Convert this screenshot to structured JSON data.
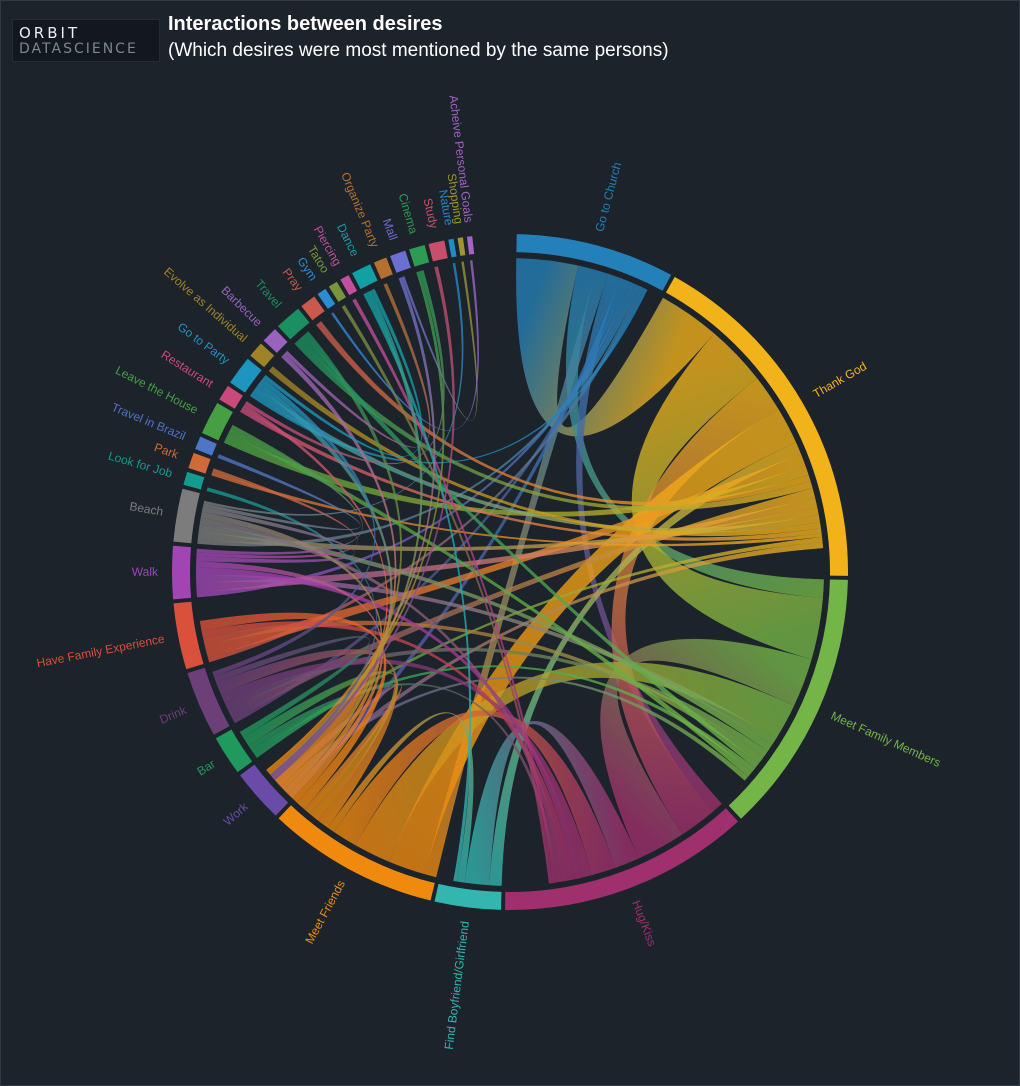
{
  "logo": {
    "line1": "ORBIT",
    "line2": "DATASCIENCE"
  },
  "header": {
    "title": "Interactions between desires",
    "subtitle": "(Which desires were most mentioned by the same persons)"
  },
  "chart_data": {
    "type": "chord",
    "title": "Interactions between desires",
    "subtitle": "(Which desires were most mentioned by the same persons)",
    "groups": [
      {
        "name": "Go to Church",
        "value": 12,
        "color": "#2480b8"
      },
      {
        "name": "Thank God",
        "value": 27,
        "color": "#f2b21a"
      },
      {
        "name": "Meet Family Members",
        "value": 20,
        "color": "#74b547"
      },
      {
        "name": "Hug/Kiss",
        "value": 19,
        "color": "#a0306d"
      },
      {
        "name": "Find Boyfriend/Girlfriend",
        "value": 5,
        "color": "#33b5b0"
      },
      {
        "name": "Meet Friends",
        "value": 13,
        "color": "#f08a0f"
      },
      {
        "name": "Work",
        "value": 4,
        "color": "#6a4ca8"
      },
      {
        "name": "Bar",
        "value": 3,
        "color": "#1f9a5c"
      },
      {
        "name": "Drink",
        "value": 5,
        "color": "#6d3f79"
      },
      {
        "name": "Have Family Experience",
        "value": 5,
        "color": "#d9513a"
      },
      {
        "name": "Walk",
        "value": 4,
        "color": "#a145b5"
      },
      {
        "name": "Beach",
        "value": 4,
        "color": "#7c7c7c"
      },
      {
        "name": "Look for Job",
        "value": 1,
        "color": "#149b8f"
      },
      {
        "name": "Park",
        "value": 1.2,
        "color": "#d06a38"
      },
      {
        "name": "Travel in Brazil",
        "value": 1,
        "color": "#4f75c7"
      },
      {
        "name": "Leave the House",
        "value": 2.5,
        "color": "#46a043"
      },
      {
        "name": "Restaurant",
        "value": 1.2,
        "color": "#c9497a"
      },
      {
        "name": "Go to Party",
        "value": 2.2,
        "color": "#1c96c0"
      },
      {
        "name": "Evolve as Individual",
        "value": 1.2,
        "color": "#a08326"
      },
      {
        "name": "Barbecue",
        "value": 1.2,
        "color": "#9a62bf"
      },
      {
        "name": "Travel",
        "value": 2,
        "color": "#1a8f5f"
      },
      {
        "name": "Pray",
        "value": 1.2,
        "color": "#c8594b"
      },
      {
        "name": "Gym",
        "value": 0.7,
        "color": "#2a8dd4"
      },
      {
        "name": "Tatoo",
        "value": 0.7,
        "color": "#79943a"
      },
      {
        "name": "Piercing",
        "value": 0.7,
        "color": "#c2509c"
      },
      {
        "name": "Dance",
        "value": 1.5,
        "color": "#13a0a4"
      },
      {
        "name": "Organize Party",
        "value": 1,
        "color": "#b5702f"
      },
      {
        "name": "Mall",
        "value": 1.2,
        "color": "#6b6fcf"
      },
      {
        "name": "Cinema",
        "value": 1.2,
        "color": "#2e9b54"
      },
      {
        "name": "Study",
        "value": 1.2,
        "color": "#c64f6c"
      },
      {
        "name": "Nature",
        "value": 0.4,
        "color": "#1f8cc4"
      },
      {
        "name": "Shopping",
        "value": 0.4,
        "color": "#9d962e"
      },
      {
        "name": "Acheive Personal Goals",
        "value": 0.4,
        "color": "#a662c5"
      }
    ],
    "links": [
      [
        "Go to Church",
        "Thank God",
        5
      ],
      [
        "Go to Church",
        "Meet Family Members",
        1.5
      ],
      [
        "Go to Church",
        "Meet Friends",
        1
      ],
      [
        "Go to Church",
        "Hug/Kiss",
        1
      ],
      [
        "Go to Church",
        "Work",
        0.5
      ],
      [
        "Go to Church",
        "Drink",
        0.4
      ],
      [
        "Go to Church",
        "Walk",
        0.4
      ],
      [
        "Go to Church",
        "Beach",
        0.4
      ],
      [
        "Go to Church",
        "Have Family Experience",
        0.4
      ],
      [
        "Go to Church",
        "Go to Party",
        0.3
      ],
      [
        "Thank God",
        "Meet Family Members",
        5
      ],
      [
        "Thank God",
        "Hug/Kiss",
        3
      ],
      [
        "Thank God",
        "Meet Friends",
        3
      ],
      [
        "Thank God",
        "Find Boyfriend/Girlfriend",
        1
      ],
      [
        "Thank God",
        "Have Family Experience",
        1
      ],
      [
        "Thank God",
        "Leave the House",
        0.8
      ],
      [
        "Thank God",
        "Pray",
        0.5
      ],
      [
        "Thank God",
        "Travel",
        0.6
      ],
      [
        "Thank God",
        "Drink",
        0.8
      ],
      [
        "Thank God",
        "Walk",
        0.8
      ],
      [
        "Thank God",
        "Beach",
        0.6
      ],
      [
        "Thank God",
        "Go to Party",
        0.6
      ],
      [
        "Thank God",
        "Evolve as Individual",
        0.5
      ],
      [
        "Thank God",
        "Restaurant",
        0.4
      ],
      [
        "Thank God",
        "Park",
        0.3
      ],
      [
        "Thank God",
        "Bar",
        0.4
      ],
      [
        "Thank God",
        "Work",
        0.5
      ],
      [
        "Meet Family Members",
        "Hug/Kiss",
        4
      ],
      [
        "Meet Family Members",
        "Meet Friends",
        3
      ],
      [
        "Meet Family Members",
        "Walk",
        0.6
      ],
      [
        "Meet Family Members",
        "Beach",
        0.6
      ],
      [
        "Meet Family Members",
        "Drink",
        0.6
      ],
      [
        "Meet Family Members",
        "Have Family Experience",
        0.6
      ],
      [
        "Meet Family Members",
        "Travel",
        0.5
      ],
      [
        "Meet Family Members",
        "Bar",
        0.4
      ],
      [
        "Meet Family Members",
        "Leave the House",
        0.5
      ],
      [
        "Meet Family Members",
        "Work",
        0.4
      ],
      [
        "Hug/Kiss",
        "Find Boyfriend/Girlfriend",
        2
      ],
      [
        "Hug/Kiss",
        "Meet Friends",
        2
      ],
      [
        "Hug/Kiss",
        "Drink",
        0.8
      ],
      [
        "Hug/Kiss",
        "Walk",
        0.6
      ],
      [
        "Hug/Kiss",
        "Have Family Experience",
        0.6
      ],
      [
        "Hug/Kiss",
        "Beach",
        0.5
      ],
      [
        "Hug/Kiss",
        "Bar",
        0.4
      ],
      [
        "Hug/Kiss",
        "Piercing",
        0.3
      ],
      [
        "Hug/Kiss",
        "Tatoo",
        0.3
      ],
      [
        "Find Boyfriend/Girlfriend",
        "Meet Friends",
        0.6
      ],
      [
        "Find Boyfriend/Girlfriend",
        "Dance",
        0.3
      ],
      [
        "Meet Friends",
        "Drink",
        1
      ],
      [
        "Meet Friends",
        "Bar",
        0.8
      ],
      [
        "Meet Friends",
        "Work",
        0.6
      ],
      [
        "Meet Friends",
        "Have Family Experience",
        0.8
      ],
      [
        "Meet Friends",
        "Walk",
        0.5
      ],
      [
        "Meet Friends",
        "Beach",
        0.5
      ],
      [
        "Meet Friends",
        "Go to Party",
        0.5
      ],
      [
        "Meet Friends",
        "Restaurant",
        0.3
      ],
      [
        "Meet Friends",
        "Barbecue",
        0.4
      ],
      [
        "Meet Friends",
        "Travel",
        0.4
      ],
      [
        "Meet Friends",
        "Dance",
        0.4
      ],
      [
        "Meet Friends",
        "Cinema",
        0.3
      ],
      [
        "Meet Friends",
        "Mall",
        0.3
      ],
      [
        "Work",
        "Study",
        0.3
      ],
      [
        "Work",
        "Look for Job",
        0.3
      ],
      [
        "Drink",
        "Bar",
        0.5
      ],
      [
        "Drink",
        "Go to Party",
        0.4
      ],
      [
        "Walk",
        "Beach",
        0.4
      ],
      [
        "Walk",
        "Park",
        0.3
      ],
      [
        "Beach",
        "Travel in Brazil",
        0.3
      ],
      [
        "Beach",
        "Nature",
        0.2
      ],
      [
        "Leave the House",
        "Walk",
        0.3
      ],
      [
        "Go to Party",
        "Dance",
        0.3
      ],
      [
        "Mall",
        "Shopping",
        0.2
      ],
      [
        "Cinema",
        "Restaurant",
        0.3
      ],
      [
        "Gym",
        "Acheive Personal Goals",
        0.2
      ],
      [
        "Organize Party",
        "Barbecue",
        0.3
      ]
    ]
  }
}
